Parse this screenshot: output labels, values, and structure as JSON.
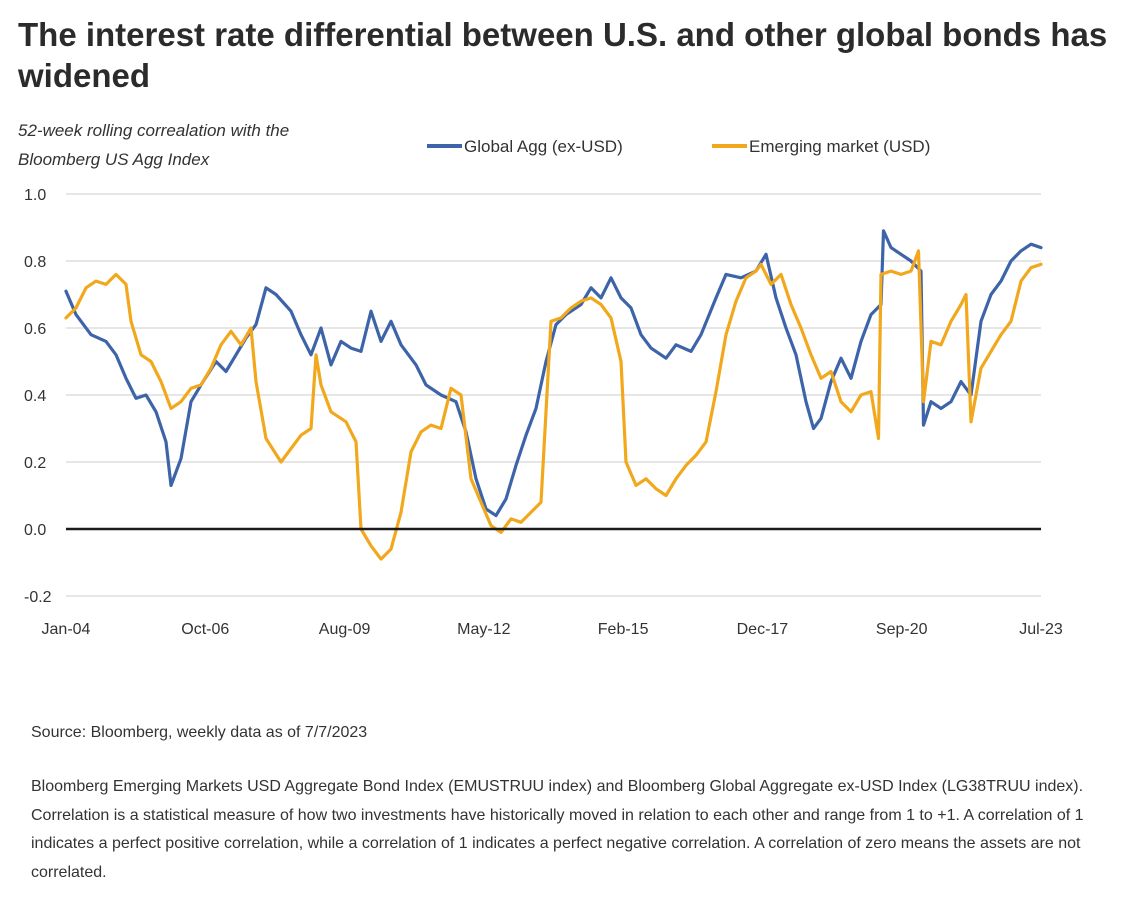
{
  "title": "The interest rate differential between U.S. and other global bonds has widened",
  "source": "Source: Bloomberg, weekly data as of 7/7/2023",
  "note": "Bloomberg Emerging Markets USD Aggregate Bond Index (EMUSTRUU index) and Bloomberg Global Aggregate ex-USD Index (LG38TRUU index). Correlation is a statistical measure of how two investments have historically moved in relation to each other and range from 1 to +1. A correlation of 1 indicates a perfect positive correlation, while a correlation of 1 indicates a perfect negative correlation. A correlation of zero means the assets are not correlated.",
  "chart_data": {
    "type": "line",
    "ylabel_line1": "52-week rolling correalation with the",
    "ylabel_line2": "Bloomberg US Agg Index",
    "ylim": [
      -0.2,
      1.0
    ],
    "xlim": [
      2004.0,
      2023.5
    ],
    "yticks": [
      "1.0",
      "0.8",
      "0.6",
      "0.4",
      "0.2",
      "0.0",
      "-0.2"
    ],
    "xtick_labels": [
      "Jan-04",
      "Oct-06",
      "Aug-09",
      "May-12",
      "Feb-15",
      "Dec-17",
      "Sep-20",
      "Jul-23"
    ],
    "grid": true,
    "legend_position": "top",
    "series": [
      {
        "name": "Global Agg (ex-USD)",
        "color": "#3d64a8",
        "points": [
          [
            2004.0,
            0.71
          ],
          [
            2004.2,
            0.64
          ],
          [
            2004.5,
            0.58
          ],
          [
            2004.8,
            0.56
          ],
          [
            2005.0,
            0.52
          ],
          [
            2005.2,
            0.45
          ],
          [
            2005.4,
            0.39
          ],
          [
            2005.6,
            0.4
          ],
          [
            2005.8,
            0.35
          ],
          [
            2006.0,
            0.26
          ],
          [
            2006.1,
            0.13
          ],
          [
            2006.3,
            0.21
          ],
          [
            2006.5,
            0.38
          ],
          [
            2006.7,
            0.43
          ],
          [
            2007.0,
            0.5
          ],
          [
            2007.2,
            0.47
          ],
          [
            2007.4,
            0.52
          ],
          [
            2007.6,
            0.57
          ],
          [
            2007.8,
            0.61
          ],
          [
            2008.0,
            0.72
          ],
          [
            2008.2,
            0.7
          ],
          [
            2008.5,
            0.65
          ],
          [
            2008.7,
            0.58
          ],
          [
            2008.9,
            0.52
          ],
          [
            2009.1,
            0.6
          ],
          [
            2009.3,
            0.49
          ],
          [
            2009.5,
            0.56
          ],
          [
            2009.7,
            0.54
          ],
          [
            2009.9,
            0.53
          ],
          [
            2010.1,
            0.65
          ],
          [
            2010.3,
            0.56
          ],
          [
            2010.5,
            0.62
          ],
          [
            2010.7,
            0.55
          ],
          [
            2011.0,
            0.49
          ],
          [
            2011.2,
            0.43
          ],
          [
            2011.5,
            0.4
          ],
          [
            2011.8,
            0.38
          ],
          [
            2012.0,
            0.29
          ],
          [
            2012.2,
            0.15
          ],
          [
            2012.4,
            0.06
          ],
          [
            2012.6,
            0.04
          ],
          [
            2012.8,
            0.09
          ],
          [
            2013.0,
            0.19
          ],
          [
            2013.2,
            0.28
          ],
          [
            2013.4,
            0.36
          ],
          [
            2013.6,
            0.5
          ],
          [
            2013.8,
            0.61
          ],
          [
            2014.0,
            0.64
          ],
          [
            2014.3,
            0.67
          ],
          [
            2014.5,
            0.72
          ],
          [
            2014.7,
            0.69
          ],
          [
            2014.9,
            0.75
          ],
          [
            2015.1,
            0.69
          ],
          [
            2015.3,
            0.66
          ],
          [
            2015.5,
            0.58
          ],
          [
            2015.7,
            0.54
          ],
          [
            2016.0,
            0.51
          ],
          [
            2016.2,
            0.55
          ],
          [
            2016.5,
            0.53
          ],
          [
            2016.7,
            0.58
          ],
          [
            2017.0,
            0.69
          ],
          [
            2017.2,
            0.76
          ],
          [
            2017.5,
            0.75
          ],
          [
            2017.8,
            0.77
          ],
          [
            2018.0,
            0.82
          ],
          [
            2018.2,
            0.69
          ],
          [
            2018.4,
            0.6
          ],
          [
            2018.6,
            0.52
          ],
          [
            2018.8,
            0.38
          ],
          [
            2018.95,
            0.3
          ],
          [
            2019.1,
            0.33
          ],
          [
            2019.3,
            0.44
          ],
          [
            2019.5,
            0.51
          ],
          [
            2019.7,
            0.45
          ],
          [
            2019.9,
            0.56
          ],
          [
            2020.1,
            0.64
          ],
          [
            2020.3,
            0.67
          ],
          [
            2020.35,
            0.89
          ],
          [
            2020.5,
            0.84
          ],
          [
            2020.7,
            0.82
          ],
          [
            2020.9,
            0.8
          ],
          [
            2021.1,
            0.77
          ],
          [
            2021.15,
            0.31
          ],
          [
            2021.3,
            0.38
          ],
          [
            2021.5,
            0.36
          ],
          [
            2021.7,
            0.38
          ],
          [
            2021.9,
            0.44
          ],
          [
            2022.1,
            0.4
          ],
          [
            2022.3,
            0.62
          ],
          [
            2022.5,
            0.7
          ],
          [
            2022.7,
            0.74
          ],
          [
            2022.9,
            0.8
          ],
          [
            2023.1,
            0.83
          ],
          [
            2023.3,
            0.85
          ],
          [
            2023.5,
            0.84
          ]
        ]
      },
      {
        "name": "Emerging market (USD)",
        "color": "#f2a81d",
        "points": [
          [
            2004.0,
            0.63
          ],
          [
            2004.2,
            0.66
          ],
          [
            2004.4,
            0.72
          ],
          [
            2004.6,
            0.74
          ],
          [
            2004.8,
            0.73
          ],
          [
            2005.0,
            0.76
          ],
          [
            2005.2,
            0.73
          ],
          [
            2005.3,
            0.62
          ],
          [
            2005.5,
            0.52
          ],
          [
            2005.7,
            0.5
          ],
          [
            2005.9,
            0.44
          ],
          [
            2006.1,
            0.36
          ],
          [
            2006.3,
            0.38
          ],
          [
            2006.5,
            0.42
          ],
          [
            2006.7,
            0.43
          ],
          [
            2006.9,
            0.48
          ],
          [
            2007.1,
            0.55
          ],
          [
            2007.3,
            0.59
          ],
          [
            2007.5,
            0.55
          ],
          [
            2007.7,
            0.6
          ],
          [
            2007.8,
            0.44
          ],
          [
            2008.0,
            0.27
          ],
          [
            2008.3,
            0.2
          ],
          [
            2008.5,
            0.24
          ],
          [
            2008.7,
            0.28
          ],
          [
            2008.9,
            0.3
          ],
          [
            2009.0,
            0.52
          ],
          [
            2009.1,
            0.43
          ],
          [
            2009.3,
            0.35
          ],
          [
            2009.6,
            0.32
          ],
          [
            2009.8,
            0.26
          ],
          [
            2009.9,
            0.0
          ],
          [
            2010.1,
            -0.05
          ],
          [
            2010.3,
            -0.09
          ],
          [
            2010.5,
            -0.06
          ],
          [
            2010.7,
            0.05
          ],
          [
            2010.9,
            0.23
          ],
          [
            2011.1,
            0.29
          ],
          [
            2011.3,
            0.31
          ],
          [
            2011.5,
            0.3
          ],
          [
            2011.7,
            0.42
          ],
          [
            2011.9,
            0.4
          ],
          [
            2012.1,
            0.15
          ],
          [
            2012.3,
            0.08
          ],
          [
            2012.5,
            0.01
          ],
          [
            2012.7,
            -0.01
          ],
          [
            2012.9,
            0.03
          ],
          [
            2013.1,
            0.02
          ],
          [
            2013.3,
            0.05
          ],
          [
            2013.5,
            0.08
          ],
          [
            2013.7,
            0.62
          ],
          [
            2013.9,
            0.63
          ],
          [
            2014.1,
            0.66
          ],
          [
            2014.3,
            0.68
          ],
          [
            2014.5,
            0.69
          ],
          [
            2014.7,
            0.67
          ],
          [
            2014.9,
            0.63
          ],
          [
            2015.1,
            0.5
          ],
          [
            2015.2,
            0.2
          ],
          [
            2015.4,
            0.13
          ],
          [
            2015.6,
            0.15
          ],
          [
            2015.8,
            0.12
          ],
          [
            2016.0,
            0.1
          ],
          [
            2016.2,
            0.15
          ],
          [
            2016.4,
            0.19
          ],
          [
            2016.6,
            0.22
          ],
          [
            2016.8,
            0.26
          ],
          [
            2017.0,
            0.41
          ],
          [
            2017.2,
            0.58
          ],
          [
            2017.4,
            0.68
          ],
          [
            2017.6,
            0.75
          ],
          [
            2017.8,
            0.77
          ],
          [
            2017.9,
            0.79
          ],
          [
            2018.1,
            0.73
          ],
          [
            2018.3,
            0.76
          ],
          [
            2018.5,
            0.67
          ],
          [
            2018.7,
            0.6
          ],
          [
            2018.9,
            0.52
          ],
          [
            2019.1,
            0.45
          ],
          [
            2019.3,
            0.47
          ],
          [
            2019.5,
            0.38
          ],
          [
            2019.7,
            0.35
          ],
          [
            2019.9,
            0.4
          ],
          [
            2020.1,
            0.41
          ],
          [
            2020.25,
            0.27
          ],
          [
            2020.3,
            0.76
          ],
          [
            2020.5,
            0.77
          ],
          [
            2020.7,
            0.76
          ],
          [
            2020.9,
            0.77
          ],
          [
            2021.05,
            0.83
          ],
          [
            2021.15,
            0.38
          ],
          [
            2021.3,
            0.56
          ],
          [
            2021.5,
            0.55
          ],
          [
            2021.7,
            0.62
          ],
          [
            2021.9,
            0.67
          ],
          [
            2022.0,
            0.7
          ],
          [
            2022.1,
            0.32
          ],
          [
            2022.3,
            0.48
          ],
          [
            2022.5,
            0.53
          ],
          [
            2022.7,
            0.58
          ],
          [
            2022.9,
            0.62
          ],
          [
            2023.1,
            0.74
          ],
          [
            2023.3,
            0.78
          ],
          [
            2023.5,
            0.79
          ]
        ]
      }
    ]
  }
}
